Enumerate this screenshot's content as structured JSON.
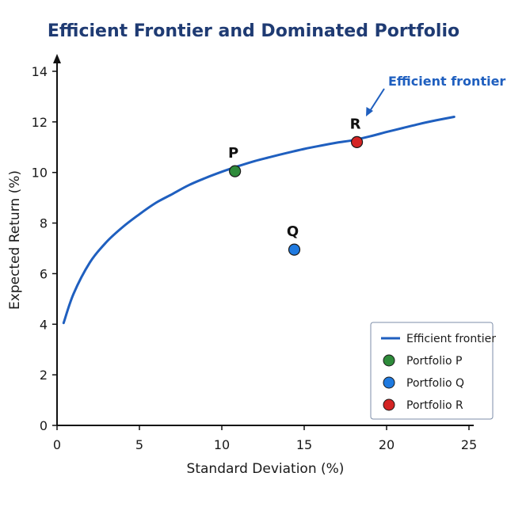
{
  "chart_data": {
    "type": "scatter",
    "title": "Efficient Frontier and Dominated Portfolio",
    "xlabel": "Standard Deviation (%)",
    "ylabel": "Expected Return (%)",
    "xlim": [
      0,
      25
    ],
    "ylim": [
      0,
      14
    ],
    "x_ticks": [
      0,
      5,
      10,
      15,
      20,
      25
    ],
    "y_ticks": [
      0,
      2,
      4,
      6,
      8,
      10,
      12,
      14
    ],
    "grid": false,
    "frontier": {
      "name": "Efficient frontier",
      "color": "#1f5fbf",
      "x": [
        0.4,
        1,
        2,
        3,
        4,
        5,
        6,
        7,
        8,
        9,
        10,
        11,
        12,
        13,
        14,
        15,
        16,
        17,
        18,
        19,
        20,
        21,
        22,
        23,
        24.1
      ],
      "y": [
        4.05,
        5.2,
        6.45,
        7.25,
        7.85,
        8.35,
        8.8,
        9.15,
        9.5,
        9.78,
        10.03,
        10.25,
        10.45,
        10.62,
        10.78,
        10.93,
        11.06,
        11.18,
        11.28,
        11.43,
        11.6,
        11.76,
        11.92,
        12.06,
        12.2
      ]
    },
    "points": [
      {
        "label": "P",
        "name": "Portfolio P",
        "x": 10.8,
        "y": 10.05,
        "color": "#2e8b3a"
      },
      {
        "label": "Q",
        "name": "Portfolio Q",
        "x": 14.4,
        "y": 6.95,
        "color": "#1f7ae0"
      },
      {
        "label": "R",
        "name": "Portfolio R",
        "x": 18.2,
        "y": 11.2,
        "color": "#d42424"
      }
    ],
    "annotation": {
      "text": "Efficient frontier",
      "color": "#1f5fbf"
    },
    "legend": {
      "position": "bottom-right",
      "entries": [
        "Efficient frontier",
        "Portfolio P",
        "Portfolio Q",
        "Portfolio R"
      ]
    }
  }
}
